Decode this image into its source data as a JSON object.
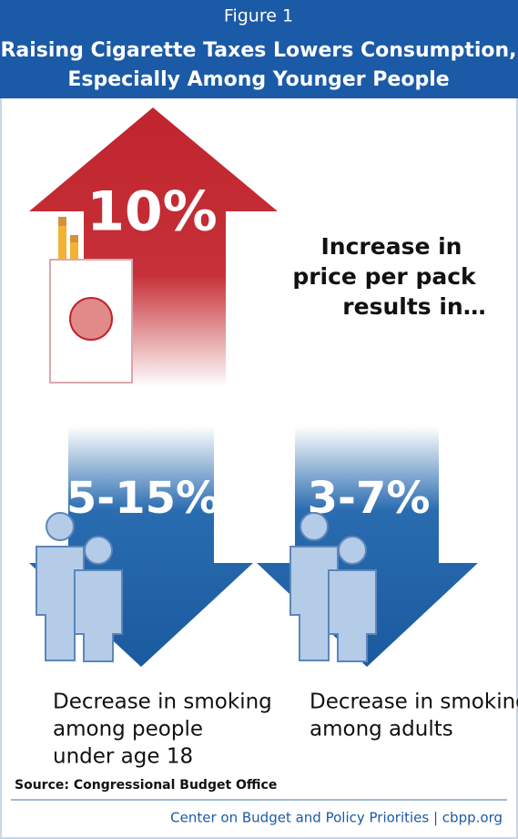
{
  "header": {
    "figure": "Figure 1",
    "title_lines": [
      "Raising Cigarette Taxes Lowers Consumption,",
      "Especially Among Younger People"
    ]
  },
  "price": {
    "value": "10%",
    "caption_lines": [
      "Increase in",
      "price per pack",
      "results in…"
    ]
  },
  "youth": {
    "value": "5-15%",
    "caption_lines": [
      "Decrease in smoking",
      "among people",
      "under age 18"
    ]
  },
  "adults": {
    "value": "3-7%",
    "caption_lines": [
      "Decrease in smoking",
      "among adults"
    ]
  },
  "source": "Source: Congressional Budget Office",
  "footer": "Center on Budget and Policy Priorities | cbpp.org"
}
